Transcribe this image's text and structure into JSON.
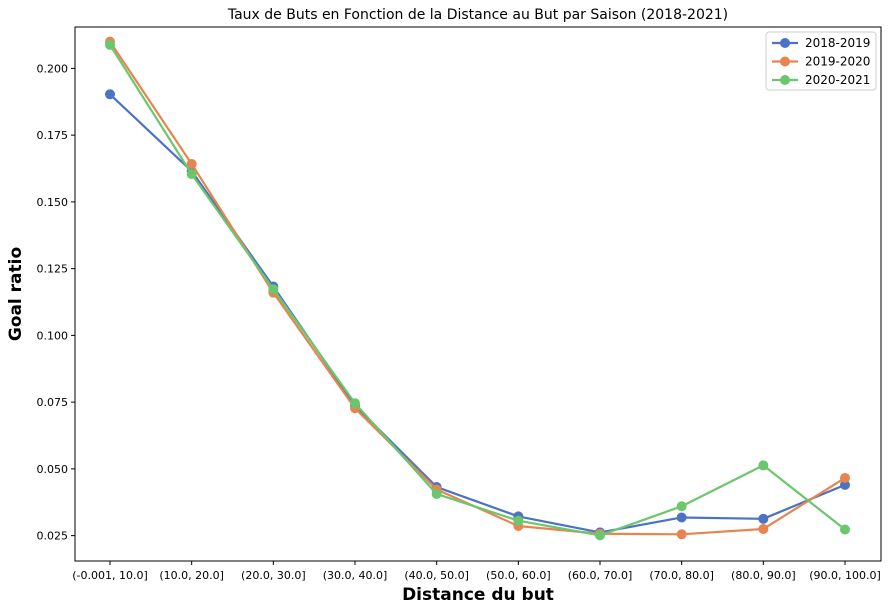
{
  "chart_data": {
    "type": "line",
    "title": "Taux de Buts en Fonction de la Distance au But par Saison (2018-2021)",
    "xlabel": "Distance du but",
    "ylabel": "Goal ratio",
    "categories": [
      "(-0.001, 10.0]",
      "(10.0, 20.0]",
      "(20.0, 30.0]",
      "(30.0, 40.0]",
      "(40.0, 50.0]",
      "(50.0, 60.0]",
      "(60.0, 70.0]",
      "(70.0, 80.0]",
      "(80.0, 90.0]",
      "(90.0, 100.0]"
    ],
    "yticks": [
      "0.025",
      "0.050",
      "0.075",
      "0.100",
      "0.125",
      "0.150",
      "0.175",
      "0.200"
    ],
    "ylim": [
      0.0155,
      0.2155
    ],
    "grid": false,
    "legend_position": "top-right",
    "series": [
      {
        "name": "2018-2019",
        "color": "#4c72c4",
        "values": [
          0.1903,
          0.1615,
          0.1183,
          0.0737,
          0.0432,
          0.0322,
          0.0262,
          0.0318,
          0.0313,
          0.044
        ]
      },
      {
        "name": "2019-2020",
        "color": "#e8844f",
        "values": [
          0.21,
          0.1642,
          0.116,
          0.0727,
          0.0423,
          0.0286,
          0.0257,
          0.0255,
          0.0275,
          0.0466
        ]
      },
      {
        "name": "2020-2021",
        "color": "#6ac76c",
        "values": [
          0.2088,
          0.1604,
          0.1173,
          0.0746,
          0.0406,
          0.0306,
          0.0251,
          0.036,
          0.0513,
          0.0273
        ]
      }
    ]
  }
}
